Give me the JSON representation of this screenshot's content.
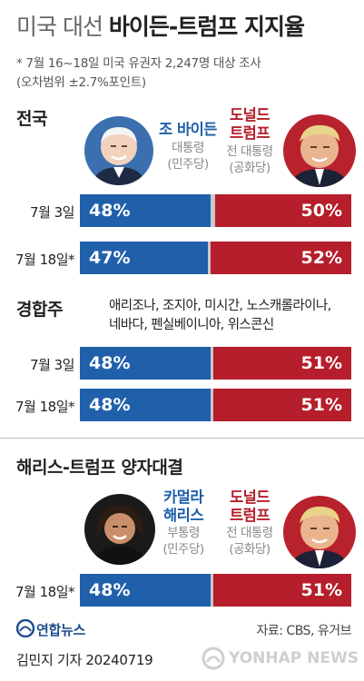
{
  "title": {
    "light": "미국 대선",
    "bold": "바이든-트럼프 지지율"
  },
  "notes": [
    "* 7월 16~18일 미국 유권자 2,247명 대상 조사",
    "(오차범위 ±2.7%포인트)"
  ],
  "sections": {
    "national": "전국",
    "swing": "경합주",
    "swing_states": [
      "애리조나, 조지아, 미시간, 노스캐롤라이나,",
      "네바다, 펜실베이니아, 위스콘신"
    ],
    "harris": "해리스-트럼프 양자대결"
  },
  "candidates": {
    "biden": {
      "name": "조 바이든",
      "role": [
        "대통령",
        "(민주당)"
      ]
    },
    "trump1": {
      "name": [
        "도널드",
        "트럼프"
      ],
      "role": [
        "전 대통령",
        "(공화당)"
      ]
    },
    "harris": {
      "name": [
        "카멀라",
        "해리스"
      ],
      "role": [
        "부통령",
        "(민주당)"
      ]
    },
    "trump2": {
      "name": [
        "도널드",
        "트럼프"
      ],
      "role": [
        "전 대통령",
        "(공화당)"
      ]
    }
  },
  "chart_data": [
    {
      "type": "bar",
      "group": "전국",
      "categories": [
        "7월 3일",
        "7월 18일*"
      ],
      "series": [
        {
          "name": "조 바이든",
          "values": [
            48,
            47
          ],
          "labels": [
            "48%",
            "47%"
          ]
        },
        {
          "name": "도널드 트럼프",
          "values": [
            50,
            52
          ],
          "labels": [
            "50%",
            "52%"
          ]
        }
      ]
    },
    {
      "type": "bar",
      "group": "경합주",
      "categories": [
        "7월 3일",
        "7월 18일*"
      ],
      "series": [
        {
          "name": "조 바이든",
          "values": [
            48,
            48
          ],
          "labels": [
            "48%",
            "48%"
          ]
        },
        {
          "name": "도널드 트럼프",
          "values": [
            51,
            51
          ],
          "labels": [
            "51%",
            "51%"
          ]
        }
      ]
    },
    {
      "type": "bar",
      "group": "해리스-트럼프 양자대결",
      "categories": [
        "7월 18일*"
      ],
      "series": [
        {
          "name": "카멀라 해리스",
          "values": [
            48
          ],
          "labels": [
            "48%"
          ]
        },
        {
          "name": "도널드 트럼프",
          "values": [
            51
          ],
          "labels": [
            "51%"
          ]
        }
      ]
    }
  ],
  "colors": {
    "democrat": "#2060ab",
    "republican": "#b51e2a",
    "undecided": "#c9c9c9"
  },
  "footer": {
    "logo": "연합뉴스",
    "source": "자료: CBS, 유거브",
    "credit": "김민지 기자  20240719",
    "watermark": "YONHAP NEWS"
  }
}
